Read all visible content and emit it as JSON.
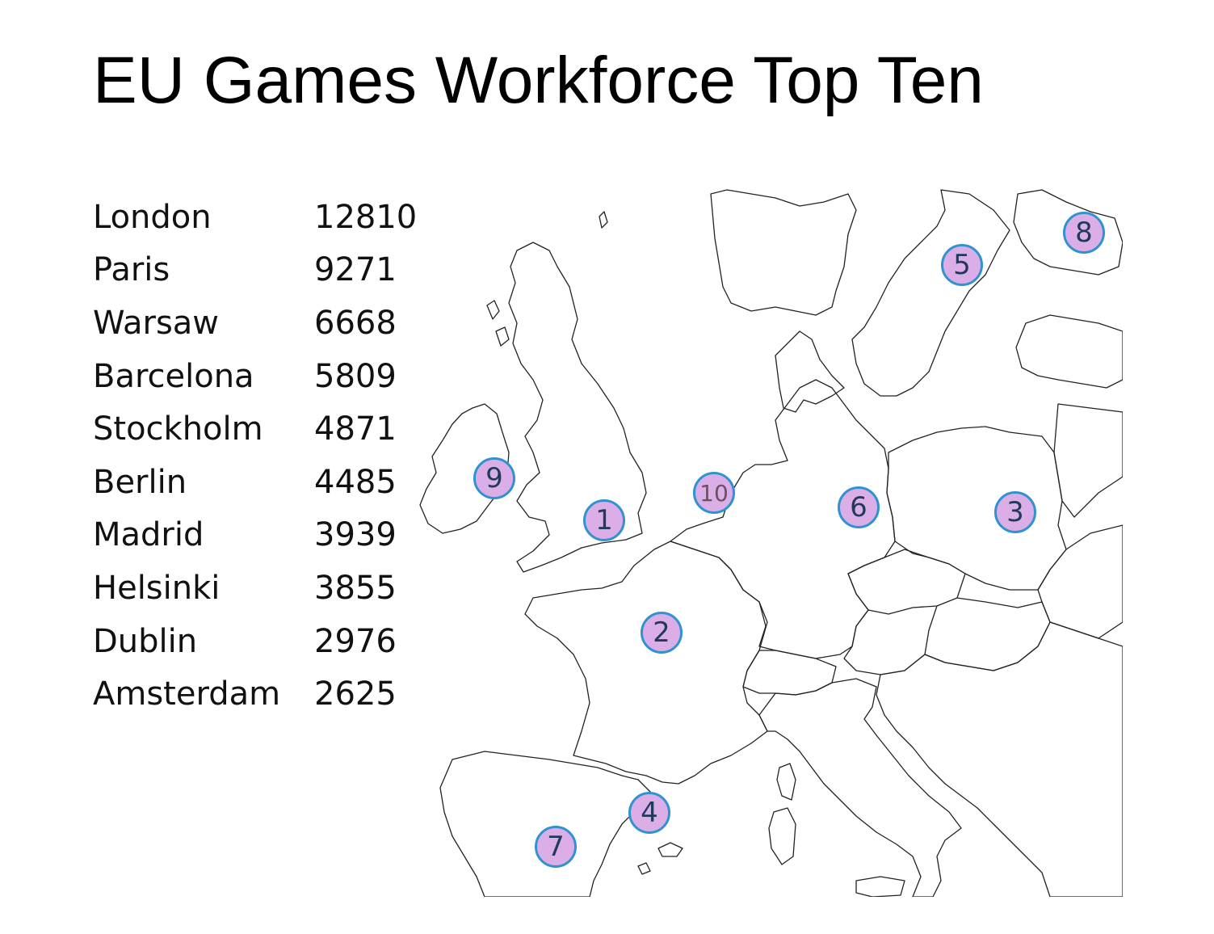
{
  "title": "EU Games Workforce Top Ten",
  "ranking": [
    {
      "city": "London",
      "value": "12810"
    },
    {
      "city": "Paris",
      "value": "9271"
    },
    {
      "city": "Warsaw",
      "value": "6668"
    },
    {
      "city": "Barcelona",
      "value": "5809"
    },
    {
      "city": "Stockholm",
      "value": "4871"
    },
    {
      "city": "Berlin",
      "value": "4485"
    },
    {
      "city": "Madrid",
      "value": "3939"
    },
    {
      "city": "Helsinki",
      "value": "3855"
    },
    {
      "city": "Dublin",
      "value": "2976"
    },
    {
      "city": "Amsterdam",
      "value": "2625"
    }
  ],
  "markers": [
    {
      "label": "1",
      "city": "London"
    },
    {
      "label": "2",
      "city": "Paris"
    },
    {
      "label": "3",
      "city": "Warsaw"
    },
    {
      "label": "4",
      "city": "Barcelona"
    },
    {
      "label": "5",
      "city": "Stockholm"
    },
    {
      "label": "6",
      "city": "Berlin"
    },
    {
      "label": "7",
      "city": "Madrid"
    },
    {
      "label": "8",
      "city": "Helsinki"
    },
    {
      "label": "9",
      "city": "Dublin"
    },
    {
      "label": "10",
      "city": "Amsterdam"
    }
  ],
  "colors": {
    "marker_fill": "#dcaee8",
    "marker_border": "#2e93cf",
    "marker_text": "#1f3a5a"
  }
}
